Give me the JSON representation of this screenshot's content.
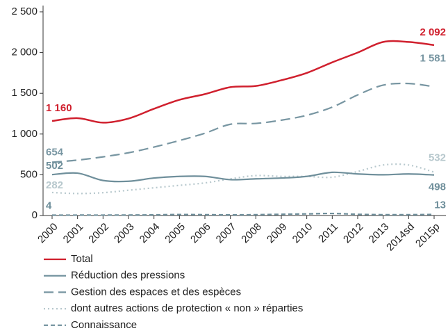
{
  "chart_data": {
    "type": "line",
    "categories": [
      "2000",
      "2001",
      "2002",
      "2003",
      "2004",
      "2005",
      "2006",
      "2007",
      "2008",
      "2009",
      "2010",
      "2011",
      "2012",
      "2013",
      "2014sd",
      "2015p"
    ],
    "ylim": [
      0,
      2500
    ],
    "yticks": [
      0,
      {
        "value": 500,
        "label": "500"
      },
      {
        "value": 1000,
        "label": "1 000"
      },
      {
        "value": 1500,
        "label": "1 500"
      },
      {
        "value": 2000,
        "label": "2 000"
      },
      {
        "value": 2500,
        "label": "2 500"
      }
    ],
    "series": [
      {
        "name": "Total",
        "color": "#d0202e",
        "dash": "solid",
        "values": [
          1160,
          1195,
          1140,
          1190,
          1310,
          1420,
          1490,
          1575,
          1590,
          1660,
          1750,
          1880,
          2000,
          2130,
          2130,
          2092
        ],
        "value_labels": [
          "1 160",
          null,
          null,
          null,
          null,
          null,
          null,
          null,
          null,
          null,
          null,
          null,
          null,
          null,
          null,
          "2 092"
        ]
      },
      {
        "name": "Réduction des pressions",
        "color": "#6f8f9b",
        "dash": "solid",
        "values": [
          502,
          520,
          430,
          420,
          460,
          480,
          480,
          440,
          450,
          460,
          480,
          530,
          510,
          500,
          510,
          498
        ],
        "value_labels": [
          "502",
          null,
          null,
          null,
          null,
          null,
          null,
          null,
          null,
          null,
          null,
          null,
          null,
          null,
          null,
          "498"
        ]
      },
      {
        "name": "Gestion des espaces et des espèces",
        "color": "#7896a2",
        "dash": "long-dash",
        "values": [
          654,
          680,
          720,
          770,
          840,
          920,
          1010,
          1120,
          1130,
          1170,
          1230,
          1330,
          1480,
          1600,
          1620,
          1581
        ],
        "value_labels": [
          "654",
          null,
          null,
          null,
          null,
          null,
          null,
          null,
          null,
          null,
          null,
          null,
          null,
          null,
          null,
          "1 581"
        ]
      },
      {
        "name": "dont autres actions de protection « non » réparties",
        "color": "#b7c8cd",
        "dash": "dotted",
        "values": [
          282,
          270,
          280,
          310,
          340,
          370,
          400,
          450,
          490,
          480,
          480,
          470,
          540,
          620,
          620,
          532
        ],
        "value_labels": [
          "282",
          null,
          null,
          null,
          null,
          null,
          null,
          null,
          null,
          null,
          null,
          null,
          null,
          null,
          null,
          "532"
        ]
      },
      {
        "name": "Connaissance",
        "color": "#6f8f9b",
        "dash": "short-dash",
        "values": [
          4,
          5,
          5,
          6,
          8,
          12,
          10,
          8,
          10,
          15,
          20,
          25,
          15,
          10,
          10,
          13
        ],
        "value_labels": [
          "4",
          null,
          null,
          null,
          null,
          null,
          null,
          null,
          null,
          null,
          null,
          null,
          null,
          null,
          null,
          "13"
        ]
      }
    ]
  }
}
